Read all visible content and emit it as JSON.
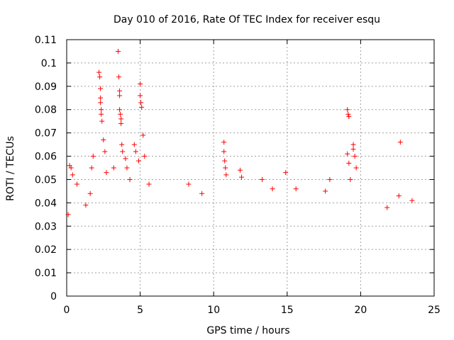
{
  "chart_data": {
    "type": "scatter",
    "title": "Day 010 of 2016, Rate Of TEC Index for receiver esqu",
    "xlabel": "GPS time / hours",
    "ylabel": "ROTI / TECUs",
    "xlim": [
      0,
      25
    ],
    "ylim": [
      0,
      0.11
    ],
    "xticks": [
      "0",
      "5",
      "10",
      "15",
      "20",
      "25"
    ],
    "yticks": [
      "0",
      "0.01",
      "0.02",
      "0.03",
      "0.04",
      "0.05",
      "0.06",
      "0.07",
      "0.08",
      "0.09",
      "0.1",
      "0.11"
    ],
    "grid": true,
    "marker": "+",
    "color": "#ff0000",
    "series": [
      {
        "values": [
          [
            0.1,
            0.035
          ],
          [
            0.2,
            0.056
          ],
          [
            0.3,
            0.055
          ],
          [
            0.4,
            0.052
          ],
          [
            0.7,
            0.048
          ],
          [
            1.3,
            0.039
          ],
          [
            1.6,
            0.044
          ],
          [
            1.7,
            0.055
          ],
          [
            1.8,
            0.06
          ],
          [
            2.2,
            0.096
          ],
          [
            2.25,
            0.094
          ],
          [
            2.3,
            0.089
          ],
          [
            2.3,
            0.085
          ],
          [
            2.3,
            0.083
          ],
          [
            2.35,
            0.08
          ],
          [
            2.35,
            0.078
          ],
          [
            2.4,
            0.075
          ],
          [
            2.5,
            0.067
          ],
          [
            2.6,
            0.062
          ],
          [
            2.7,
            0.053
          ],
          [
            3.2,
            0.055
          ],
          [
            3.5,
            0.105
          ],
          [
            3.55,
            0.094
          ],
          [
            3.6,
            0.088
          ],
          [
            3.6,
            0.086
          ],
          [
            3.6,
            0.08
          ],
          [
            3.65,
            0.078
          ],
          [
            3.7,
            0.076
          ],
          [
            3.7,
            0.074
          ],
          [
            3.75,
            0.065
          ],
          [
            3.8,
            0.062
          ],
          [
            4.0,
            0.059
          ],
          [
            4.1,
            0.055
          ],
          [
            4.3,
            0.05
          ],
          [
            4.6,
            0.065
          ],
          [
            4.7,
            0.062
          ],
          [
            4.9,
            0.058
          ],
          [
            5.0,
            0.091
          ],
          [
            5.0,
            0.086
          ],
          [
            5.05,
            0.083
          ],
          [
            5.1,
            0.081
          ],
          [
            5.2,
            0.069
          ],
          [
            5.3,
            0.06
          ],
          [
            5.6,
            0.048
          ],
          [
            8.3,
            0.048
          ],
          [
            9.2,
            0.044
          ],
          [
            10.7,
            0.066
          ],
          [
            10.7,
            0.062
          ],
          [
            10.75,
            0.058
          ],
          [
            10.8,
            0.055
          ],
          [
            10.85,
            0.052
          ],
          [
            11.8,
            0.054
          ],
          [
            11.9,
            0.051
          ],
          [
            13.3,
            0.05
          ],
          [
            14.0,
            0.046
          ],
          [
            14.9,
            0.053
          ],
          [
            15.6,
            0.046
          ],
          [
            17.6,
            0.045
          ],
          [
            17.9,
            0.05
          ],
          [
            19.1,
            0.08
          ],
          [
            19.15,
            0.078
          ],
          [
            19.2,
            0.077
          ],
          [
            19.1,
            0.061
          ],
          [
            19.2,
            0.057
          ],
          [
            19.3,
            0.05
          ],
          [
            19.5,
            0.065
          ],
          [
            19.5,
            0.063
          ],
          [
            19.6,
            0.06
          ],
          [
            19.7,
            0.055
          ],
          [
            22.7,
            0.066
          ],
          [
            22.6,
            0.043
          ],
          [
            23.5,
            0.041
          ],
          [
            21.8,
            0.038
          ]
        ]
      }
    ]
  }
}
